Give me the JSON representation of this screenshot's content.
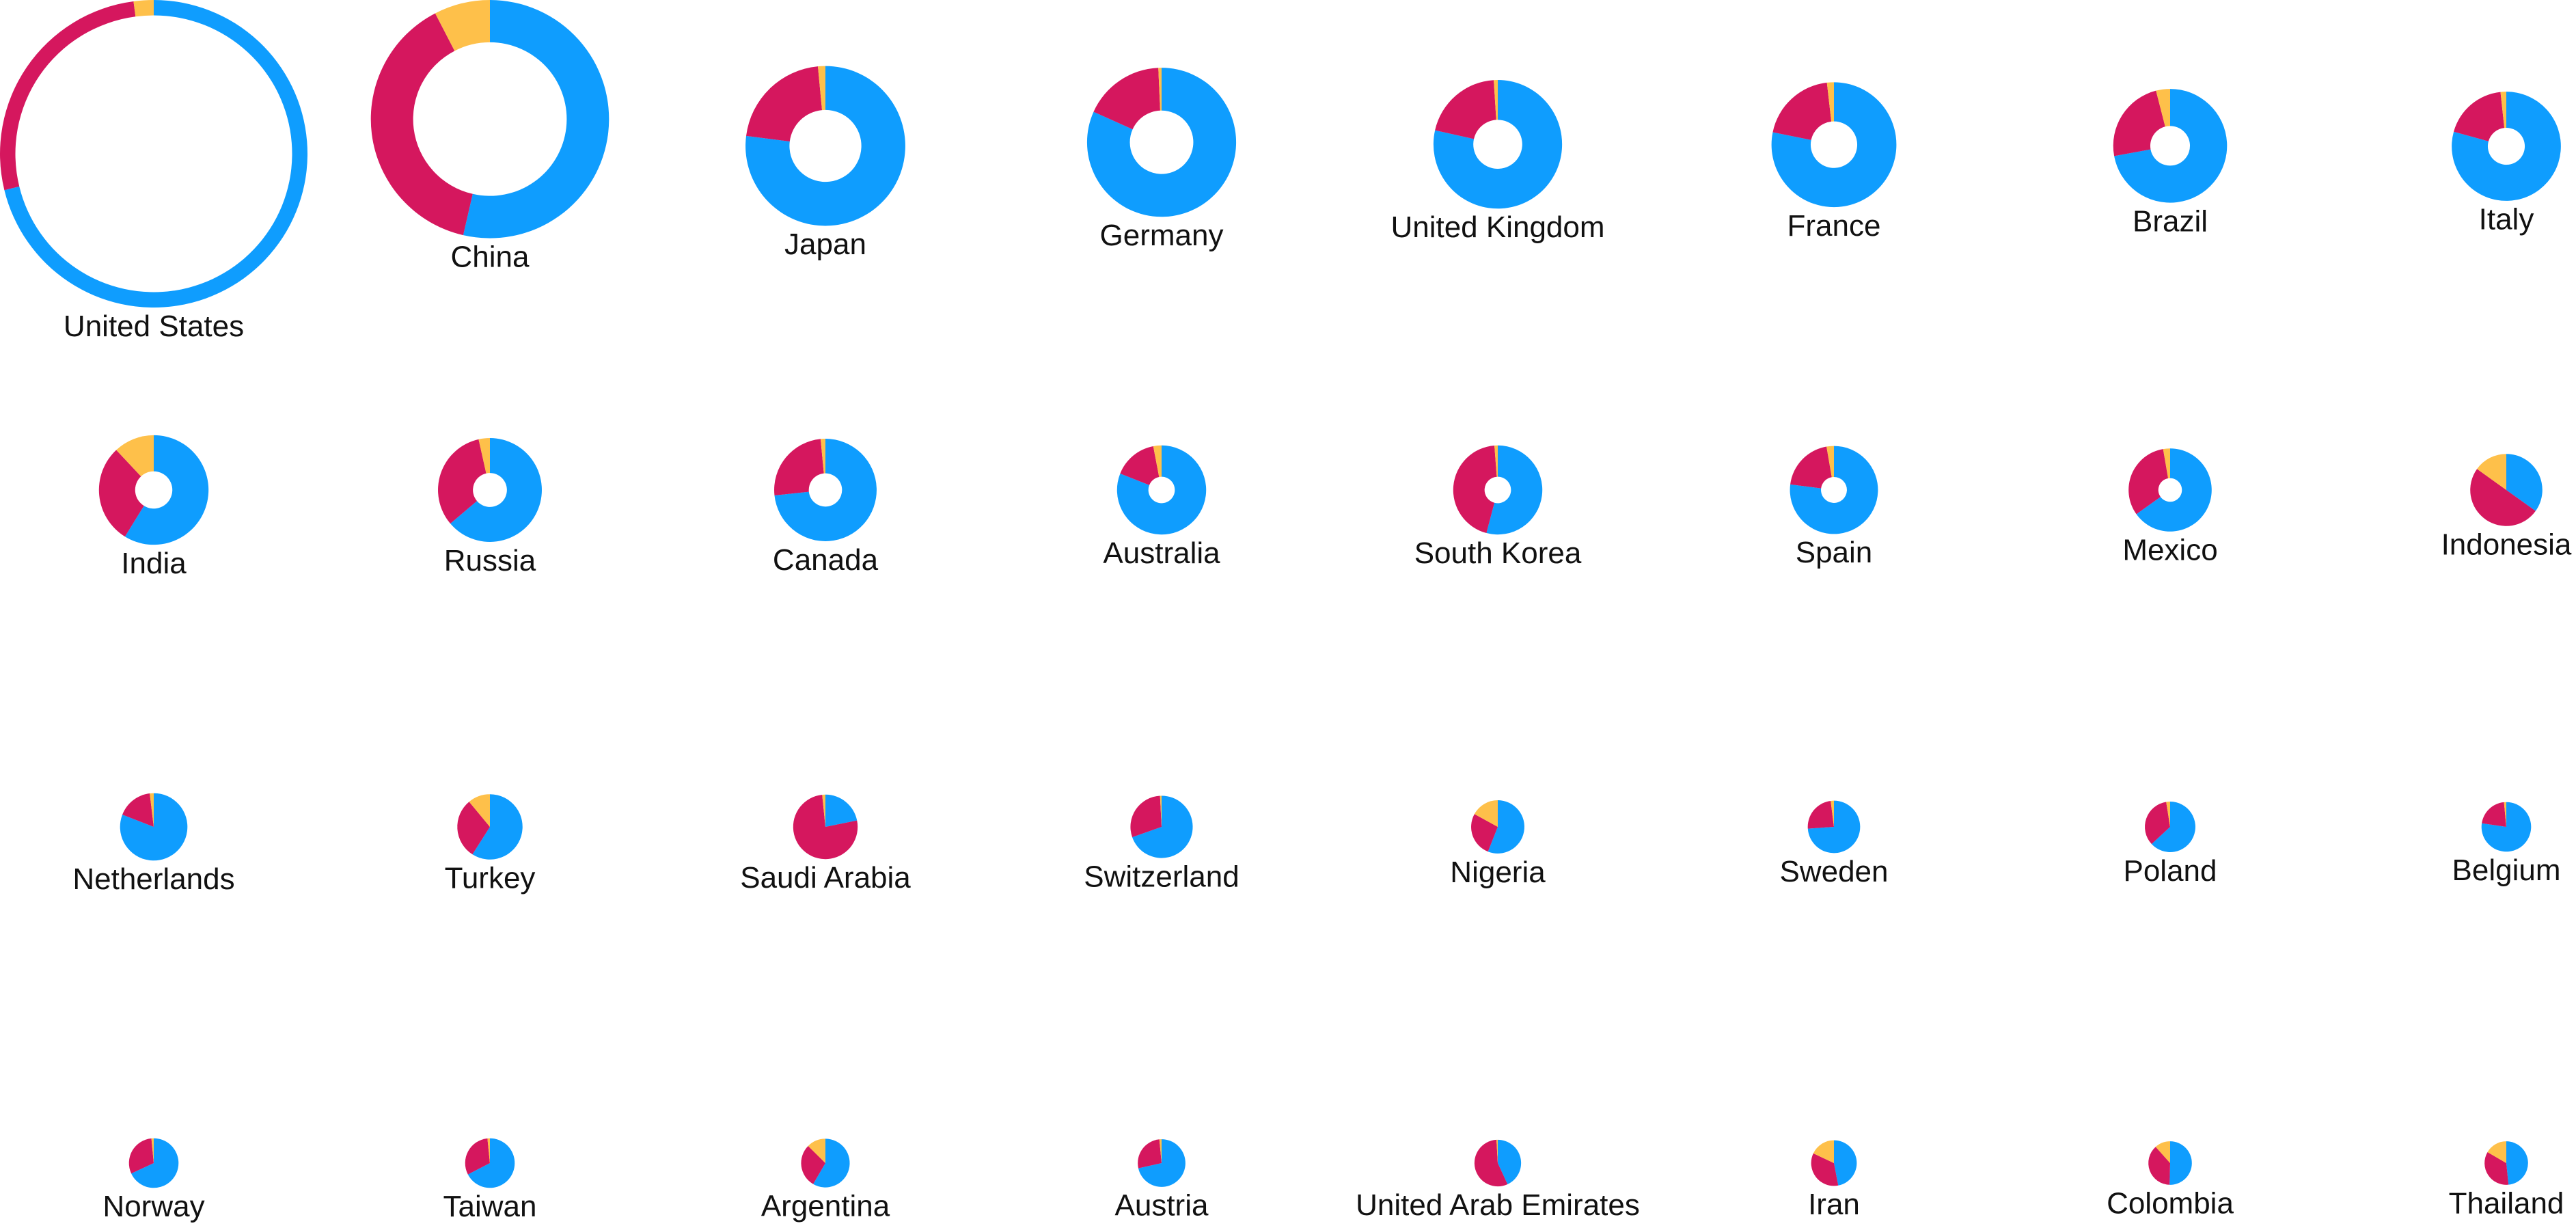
{
  "colors": {
    "series_a": "#0f9dfe",
    "series_b": "#d5175e",
    "series_c": "#fec04a",
    "background": "#ffffff",
    "label": "#111111"
  },
  "chart_data": {
    "type": "pie",
    "variant": "small-multiple-donuts",
    "title": "",
    "legend": "none",
    "grid": false,
    "series_colors": [
      "#0f9dfe",
      "#d5175e",
      "#fec04a"
    ],
    "size_encoding": "outer radius proportional to square root of total; inner hole shrinks with size",
    "items": [
      {
        "label": "United States",
        "total": 100,
        "shares": [
          0.712,
          0.267,
          0.021
        ]
      },
      {
        "label": "China",
        "total": 60,
        "shares": [
          0.536,
          0.388,
          0.076
        ]
      },
      {
        "label": "Japan",
        "total": 27,
        "shares": [
          0.77,
          0.215,
          0.015
        ]
      },
      {
        "label": "Germany",
        "total": 23.5,
        "shares": [
          0.817,
          0.176,
          0.007
        ]
      },
      {
        "label": "United Kingdom",
        "total": 17.5,
        "shares": [
          0.785,
          0.205,
          0.01
        ]
      },
      {
        "label": "France",
        "total": 16.5,
        "shares": [
          0.782,
          0.2,
          0.018
        ]
      },
      {
        "label": "Brazil",
        "total": 13.7,
        "shares": [
          0.721,
          0.239,
          0.04
        ]
      },
      {
        "label": "Italy",
        "total": 12.6,
        "shares": [
          0.793,
          0.19,
          0.017
        ]
      },
      {
        "label": "India",
        "total": 12.7,
        "shares": [
          0.588,
          0.292,
          0.12
        ]
      },
      {
        "label": "Russia",
        "total": 11.4,
        "shares": [
          0.638,
          0.327,
          0.035
        ]
      },
      {
        "label": "Canada",
        "total": 11.1,
        "shares": [
          0.733,
          0.252,
          0.015
        ]
      },
      {
        "label": "Australia",
        "total": 8.4,
        "shares": [
          0.81,
          0.16,
          0.03
        ]
      },
      {
        "label": "South Korea",
        "total": 8.4,
        "shares": [
          0.541,
          0.447,
          0.012
        ]
      },
      {
        "label": "Spain",
        "total": 8.2,
        "shares": [
          0.77,
          0.203,
          0.027
        ]
      },
      {
        "label": "Mexico",
        "total": 7.3,
        "shares": [
          0.651,
          0.322,
          0.027
        ]
      },
      {
        "label": "Indonesia",
        "total": 5.5,
        "shares": [
          0.349,
          0.5,
          0.151
        ]
      },
      {
        "label": "Netherlands",
        "total": 4.8,
        "shares": [
          0.809,
          0.172,
          0.019
        ]
      },
      {
        "label": "Turkey",
        "total": 4.5,
        "shares": [
          0.59,
          0.3,
          0.11
        ]
      },
      {
        "label": "Saudi Arabia",
        "total": 4.4,
        "shares": [
          0.218,
          0.766,
          0.016
        ]
      },
      {
        "label": "Switzerland",
        "total": 4.1,
        "shares": [
          0.696,
          0.296,
          0.008
        ]
      },
      {
        "label": "Nigeria",
        "total": 3.0,
        "shares": [
          0.56,
          0.27,
          0.17
        ]
      },
      {
        "label": "Sweden",
        "total": 2.9,
        "shares": [
          0.739,
          0.241,
          0.02
        ]
      },
      {
        "label": "Poland",
        "total": 2.7,
        "shares": [
          0.631,
          0.344,
          0.025
        ]
      },
      {
        "label": "Belgium",
        "total": 2.6,
        "shares": [
          0.773,
          0.212,
          0.015
        ]
      },
      {
        "label": "Norway",
        "total": 2.6,
        "shares": [
          0.681,
          0.304,
          0.015
        ]
      },
      {
        "label": "Taiwan",
        "total": 2.6,
        "shares": [
          0.674,
          0.31,
          0.016
        ]
      },
      {
        "label": "Argentina",
        "total": 2.5,
        "shares": [
          0.584,
          0.29,
          0.126
        ]
      },
      {
        "label": "Austria",
        "total": 2.4,
        "shares": [
          0.715,
          0.27,
          0.015
        ]
      },
      {
        "label": "United Arab Emirates",
        "total": 2.3,
        "shares": [
          0.431,
          0.56,
          0.009
        ]
      },
      {
        "label": "Iran",
        "total": 2.2,
        "shares": [
          0.47,
          0.35,
          0.18
        ]
      },
      {
        "label": "Colombia",
        "total": 2.0,
        "shares": [
          0.504,
          0.38,
          0.116
        ]
      },
      {
        "label": "Thailand",
        "total": 2.0,
        "shares": [
          0.484,
          0.35,
          0.166
        ]
      }
    ]
  }
}
